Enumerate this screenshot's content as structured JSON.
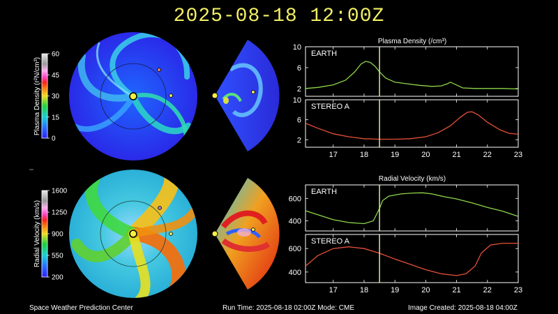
{
  "header": {
    "timestamp": "2025-08-18 12:00Z"
  },
  "footer": {
    "org": "Space Weather Prediction Center",
    "run_time": "Run Time: 2025-08-18 02:00Z  Mode: CME",
    "image_created": "Image Created: 2025-08-18 04:00Z"
  },
  "colorbars": {
    "density": {
      "label": "Plasma Density (r²N/cm³)",
      "ticks": [
        "60",
        "45",
        "30",
        "15",
        "0"
      ]
    },
    "velocity": {
      "label": "Radial Velocity (km/s)",
      "ticks": [
        "1600",
        "1250",
        "900",
        "550",
        "200"
      ]
    }
  },
  "colors": {
    "earth_line": "#8ed64a",
    "stereo_line": "#e8503a",
    "cursor": "#f6f2a8",
    "title": "#f2ef64"
  },
  "chart_data": [
    {
      "type": "line",
      "title": "Plasma Density (/cm³)",
      "xlim": [
        16.1,
        23
      ],
      "ylim": [
        0.5,
        10
      ],
      "yticks": [
        2,
        6,
        10
      ],
      "xticks": [
        17,
        18,
        19,
        20,
        21,
        22,
        23
      ],
      "panel_label": "EARTH",
      "cursor_x": 18.5,
      "series": [
        {
          "name": "EARTH",
          "x": [
            16.1,
            16.5,
            17.0,
            17.4,
            17.7,
            17.9,
            18.05,
            18.2,
            18.35,
            18.5,
            18.7,
            19.0,
            19.4,
            19.8,
            20.2,
            20.5,
            20.7,
            20.8,
            20.95,
            21.2,
            21.6,
            22.0,
            22.5,
            23.0
          ],
          "values": [
            2.0,
            2.2,
            2.7,
            3.6,
            5.2,
            6.7,
            7.2,
            7.0,
            6.3,
            5.2,
            4.0,
            3.2,
            2.9,
            2.6,
            2.4,
            2.5,
            2.9,
            3.2,
            2.8,
            2.1,
            2.0,
            2.0,
            2.0,
            1.9
          ]
        }
      ]
    },
    {
      "type": "line",
      "xlim": [
        16.1,
        23
      ],
      "ylim": [
        0.5,
        10
      ],
      "yticks": [
        2,
        6,
        10
      ],
      "xticks": [
        17,
        18,
        19,
        20,
        21,
        22,
        23
      ],
      "xticklabels": [
        "17",
        "18",
        "19",
        "20",
        "21",
        "22",
        "23"
      ],
      "panel_label": "STEREO A",
      "cursor_x": 18.5,
      "series": [
        {
          "name": "STEREO A",
          "x": [
            16.1,
            16.5,
            17.0,
            17.5,
            18.0,
            18.5,
            19.0,
            19.5,
            20.0,
            20.4,
            20.8,
            21.1,
            21.35,
            21.5,
            21.7,
            22.0,
            22.4,
            22.7,
            23.0
          ],
          "values": [
            5.3,
            4.3,
            3.2,
            2.6,
            2.2,
            2.1,
            2.1,
            2.2,
            2.6,
            3.4,
            4.8,
            6.4,
            7.5,
            7.6,
            7.0,
            5.5,
            4.0,
            3.3,
            3.1
          ]
        }
      ]
    },
    {
      "type": "line",
      "title": "Radial Velocity (km/s)",
      "xlim": [
        16.1,
        23
      ],
      "ylim": [
        310,
        720
      ],
      "yticks": [
        400,
        600
      ],
      "xticks": [
        17,
        18,
        19,
        20,
        21,
        22,
        23
      ],
      "panel_label": "EARTH",
      "cursor_x": 18.5,
      "series": [
        {
          "name": "EARTH",
          "x": [
            16.1,
            16.5,
            17.0,
            17.5,
            18.0,
            18.3,
            18.5,
            18.6,
            18.8,
            19.2,
            19.6,
            19.9,
            20.2,
            20.6,
            21.0,
            21.5,
            22.0,
            22.5,
            23.0
          ],
          "values": [
            490,
            455,
            410,
            385,
            375,
            400,
            510,
            580,
            620,
            640,
            648,
            650,
            640,
            615,
            595,
            560,
            520,
            485,
            440
          ]
        }
      ]
    },
    {
      "type": "line",
      "xlim": [
        16.1,
        23
      ],
      "ylim": [
        310,
        720
      ],
      "yticks": [
        400,
        600
      ],
      "xticks": [
        17,
        18,
        19,
        20,
        21,
        22,
        23
      ],
      "xticklabels": [
        "17",
        "18",
        "19",
        "20",
        "21",
        "22",
        "23"
      ],
      "panel_label": "STEREO A",
      "cursor_x": 18.5,
      "series": [
        {
          "name": "STEREO A",
          "x": [
            16.1,
            16.5,
            17.0,
            17.5,
            18.0,
            18.5,
            19.0,
            19.5,
            20.0,
            20.5,
            21.0,
            21.3,
            21.6,
            21.8,
            22.1,
            22.5,
            23.0
          ],
          "values": [
            450,
            540,
            600,
            615,
            600,
            560,
            510,
            465,
            420,
            385,
            370,
            385,
            450,
            560,
            630,
            645,
            645
          ]
        }
      ]
    }
  ]
}
